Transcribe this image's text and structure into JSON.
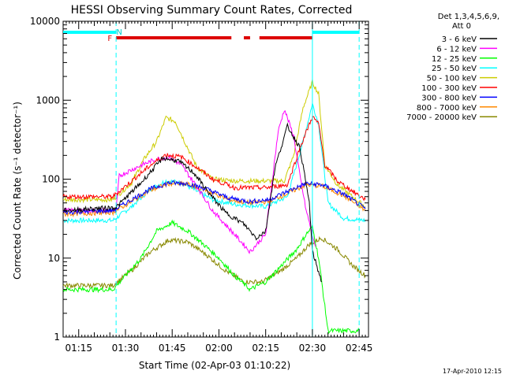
{
  "chart_data": {
    "type": "line",
    "title": "HESSI Observing Summary Count Rates, Corrected",
    "ylabel": "Corrected Count Rate (s⁻¹ detector⁻¹)",
    "xlabel": "Start Time (02-Apr-03 01:10:22)",
    "footer": "17-Apr-2010 12:15",
    "y_scale": "log",
    "ylim": [
      1,
      10000
    ],
    "xlim": [
      "01:10",
      "02:48"
    ],
    "x_ticks": [
      "01:15",
      "01:30",
      "01:45",
      "02:00",
      "02:15",
      "02:30",
      "02:45"
    ],
    "y_ticks": [
      "1",
      "10",
      "100",
      "1000",
      "10000"
    ],
    "legend": {
      "header": [
        "Det 1,3,4,5,6,9,",
        "Att 0"
      ],
      "placement": "right"
    },
    "flags": {
      "cyan_bar": [
        [
          "01:10",
          "01:27"
        ],
        [
          "02:30",
          "02:45"
        ]
      ],
      "red_bar": [
        [
          "01:27",
          "02:04"
        ],
        [
          "02:08",
          "02:10"
        ],
        [
          "02:13",
          "02:30"
        ]
      ],
      "labels": [
        {
          "text": "F",
          "x": "01:25"
        },
        {
          "text": "N",
          "x": "01:28"
        }
      ]
    },
    "vlines": [
      {
        "x": "01:27",
        "style": "dashed"
      },
      {
        "x": "02:30",
        "style": "solid"
      },
      {
        "x": "02:45",
        "style": "dashed"
      }
    ],
    "series": [
      {
        "name": "3 - 6 keV",
        "color": "#000000",
        "points": [
          [
            "01:10",
            40
          ],
          [
            "01:27",
            44
          ],
          [
            "01:35",
            90
          ],
          [
            "01:42",
            185
          ],
          [
            "01:47",
            170
          ],
          [
            "01:52",
            120
          ],
          [
            "01:57",
            65
          ],
          [
            "02:02",
            38
          ],
          [
            "02:08",
            27
          ],
          [
            "02:12",
            18
          ],
          [
            "02:15",
            22
          ],
          [
            "02:18",
            140
          ],
          [
            "02:22",
            470
          ],
          [
            "02:26",
            250
          ],
          [
            "02:29",
            50
          ],
          [
            "02:30",
            12
          ],
          [
            "02:31",
            9
          ],
          [
            "02:33",
            5
          ]
        ]
      },
      {
        "name": "6 - 12 keV",
        "color": "#ff00ff",
        "points": [
          [
            "01:10",
            40
          ],
          [
            "01:27",
            40
          ],
          [
            "01:28",
            110
          ],
          [
            "01:35",
            150
          ],
          [
            "01:40",
            180
          ],
          [
            "01:44",
            190
          ],
          [
            "01:48",
            150
          ],
          [
            "01:53",
            80
          ],
          [
            "01:58",
            40
          ],
          [
            "02:05",
            20
          ],
          [
            "02:10",
            12
          ],
          [
            "02:15",
            20
          ],
          [
            "02:19",
            400
          ],
          [
            "02:21",
            770
          ],
          [
            "02:24",
            350
          ],
          [
            "02:26",
            110
          ],
          [
            "02:28",
            40
          ],
          [
            "02:30",
            20
          ],
          [
            "02:31",
            14
          ]
        ]
      },
      {
        "name": "12 - 25 keV",
        "color": "#00ff00",
        "points": [
          [
            "01:10",
            4
          ],
          [
            "01:26",
            4
          ],
          [
            "01:30",
            6
          ],
          [
            "01:35",
            10
          ],
          [
            "01:40",
            22
          ],
          [
            "01:45",
            28
          ],
          [
            "01:50",
            22
          ],
          [
            "01:55",
            15
          ],
          [
            "02:00",
            10
          ],
          [
            "02:05",
            6
          ],
          [
            "02:10",
            4
          ],
          [
            "02:15",
            5
          ],
          [
            "02:20",
            8
          ],
          [
            "02:25",
            13
          ],
          [
            "02:28",
            20
          ],
          [
            "02:30",
            25
          ],
          [
            "02:32",
            10
          ],
          [
            "02:35",
            1.2
          ],
          [
            "02:45",
            1.2
          ]
        ]
      },
      {
        "name": "25 - 50 keV",
        "color": "#00ffff",
        "points": [
          [
            "01:10",
            30
          ],
          [
            "01:26",
            30
          ],
          [
            "01:32",
            45
          ],
          [
            "01:38",
            75
          ],
          [
            "01:43",
            95
          ],
          [
            "01:48",
            90
          ],
          [
            "01:53",
            70
          ],
          [
            "01:58",
            55
          ],
          [
            "02:05",
            48
          ],
          [
            "02:15",
            45
          ],
          [
            "02:22",
            60
          ],
          [
            "02:27",
            300
          ],
          [
            "02:30",
            900
          ],
          [
            "02:32",
            500
          ],
          [
            "02:35",
            50
          ],
          [
            "02:40",
            32
          ],
          [
            "02:47",
            30
          ]
        ]
      },
      {
        "name": "50 - 100 keV",
        "color": "#cccc00",
        "points": [
          [
            "01:10",
            55
          ],
          [
            "01:26",
            55
          ],
          [
            "01:32",
            90
          ],
          [
            "01:36",
            180
          ],
          [
            "01:40",
            300
          ],
          [
            "01:43",
            600
          ],
          [
            "01:46",
            540
          ],
          [
            "01:49",
            300
          ],
          [
            "01:53",
            140
          ],
          [
            "01:58",
            100
          ],
          [
            "02:05",
            95
          ],
          [
            "02:15",
            95
          ],
          [
            "02:21",
            95
          ],
          [
            "02:24",
            200
          ],
          [
            "02:27",
            800
          ],
          [
            "02:30",
            1700
          ],
          [
            "02:32",
            1200
          ],
          [
            "02:34",
            150
          ],
          [
            "02:38",
            85
          ],
          [
            "02:44",
            55
          ],
          [
            "02:47",
            45
          ]
        ]
      },
      {
        "name": "100 - 300 keV",
        "color": "#ff0000",
        "points": [
          [
            "01:10",
            60
          ],
          [
            "01:26",
            60
          ],
          [
            "01:32",
            95
          ],
          [
            "01:38",
            150
          ],
          [
            "01:43",
            205
          ],
          [
            "01:48",
            190
          ],
          [
            "01:53",
            140
          ],
          [
            "01:58",
            100
          ],
          [
            "02:05",
            78
          ],
          [
            "02:15",
            78
          ],
          [
            "02:22",
            85
          ],
          [
            "02:26",
            250
          ],
          [
            "02:30",
            620
          ],
          [
            "02:32",
            500
          ],
          [
            "02:34",
            150
          ],
          [
            "02:38",
            95
          ],
          [
            "02:43",
            70
          ],
          [
            "02:47",
            55
          ]
        ]
      },
      {
        "name": "300 - 800 keV",
        "color": "#0000ff",
        "points": [
          [
            "01:10",
            38
          ],
          [
            "01:26",
            40
          ],
          [
            "01:32",
            55
          ],
          [
            "01:38",
            75
          ],
          [
            "01:44",
            90
          ],
          [
            "01:50",
            88
          ],
          [
            "01:56",
            75
          ],
          [
            "02:03",
            58
          ],
          [
            "02:10",
            52
          ],
          [
            "02:16",
            55
          ],
          [
            "02:22",
            70
          ],
          [
            "02:28",
            88
          ],
          [
            "02:33",
            85
          ],
          [
            "02:40",
            65
          ],
          [
            "02:47",
            42
          ]
        ]
      },
      {
        "name": "800 - 7000 keV",
        "color": "#ff8800",
        "points": [
          [
            "01:10",
            36
          ],
          [
            "01:26",
            38
          ],
          [
            "01:32",
            52
          ],
          [
            "01:38",
            72
          ],
          [
            "01:44",
            88
          ],
          [
            "01:50",
            86
          ],
          [
            "01:56",
            72
          ],
          [
            "02:03",
            55
          ],
          [
            "02:10",
            50
          ],
          [
            "02:16",
            52
          ],
          [
            "02:22",
            66
          ],
          [
            "02:28",
            85
          ],
          [
            "02:33",
            82
          ],
          [
            "02:40",
            62
          ],
          [
            "02:47",
            40
          ]
        ]
      },
      {
        "name": "7000 - 20000 keV",
        "color": "#888800",
        "points": [
          [
            "01:10",
            4.5
          ],
          [
            "01:26",
            4.5
          ],
          [
            "01:32",
            7
          ],
          [
            "01:38",
            12
          ],
          [
            "01:44",
            17
          ],
          [
            "01:50",
            16
          ],
          [
            "01:56",
            11
          ],
          [
            "02:02",
            7
          ],
          [
            "02:08",
            5
          ],
          [
            "02:14",
            5
          ],
          [
            "02:20",
            7
          ],
          [
            "02:25",
            10
          ],
          [
            "02:29",
            15
          ],
          [
            "02:33",
            18
          ],
          [
            "02:38",
            13
          ],
          [
            "02:43",
            8
          ],
          [
            "02:47",
            6
          ]
        ]
      }
    ]
  }
}
